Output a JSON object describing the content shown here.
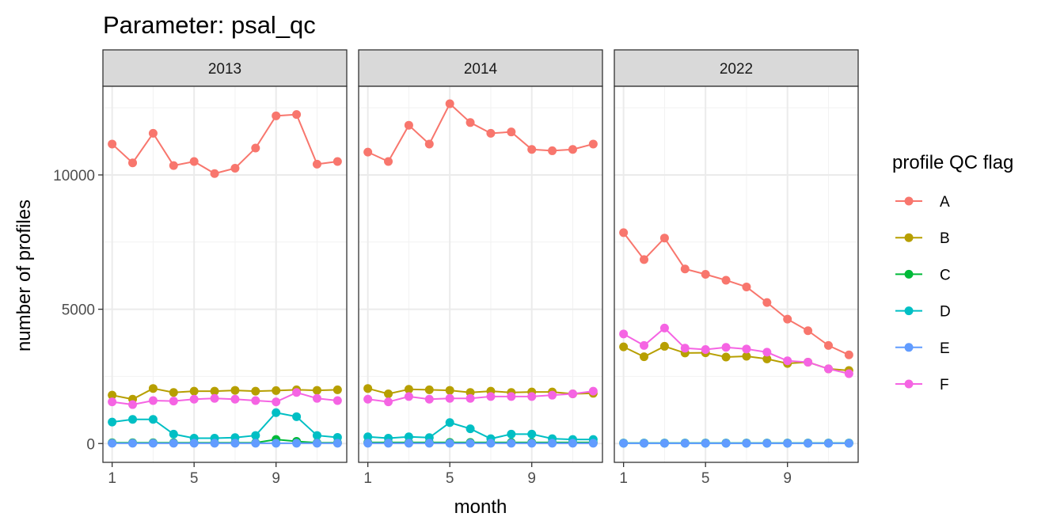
{
  "chart_data": {
    "type": "line",
    "title": "Parameter:  psal_qc",
    "xlabel": "month",
    "ylabel": "number of profiles",
    "x": [
      1,
      2,
      3,
      4,
      5,
      6,
      7,
      8,
      9,
      10,
      11,
      12
    ],
    "xticks": [
      1,
      5,
      9
    ],
    "ylim": [
      -700,
      13300
    ],
    "yticks": [
      0,
      5000,
      10000
    ],
    "grid": true,
    "legend": {
      "title": "profile QC flag",
      "position": "right"
    },
    "colors": {
      "A": "#F8766D",
      "B": "#B79F00",
      "C": "#00BA38",
      "D": "#00BFC4",
      "E": "#619CFF",
      "F": "#F564E3"
    },
    "series_names": [
      "A",
      "B",
      "C",
      "D",
      "E",
      "F"
    ],
    "panels": [
      {
        "label": "2013",
        "series": [
          {
            "name": "A",
            "values": [
              11150,
              10450,
              11550,
              10350,
              10500,
              10050,
              10250,
              11000,
              12200,
              12250,
              10400,
              10500
            ]
          },
          {
            "name": "B",
            "values": [
              1800,
              1650,
              2050,
              1900,
              1950,
              1950,
              1980,
              1950,
              1970,
              2000,
              1980,
              2000
            ]
          },
          {
            "name": "C",
            "values": [
              30,
              30,
              30,
              30,
              30,
              30,
              30,
              30,
              150,
              80,
              30,
              30
            ]
          },
          {
            "name": "D",
            "values": [
              800,
              900,
              900,
              350,
              200,
              200,
              220,
              300,
              1150,
              1000,
              300,
              230
            ]
          },
          {
            "name": "E",
            "values": [
              10,
              10,
              10,
              10,
              10,
              10,
              10,
              10,
              10,
              10,
              10,
              10
            ]
          },
          {
            "name": "F",
            "values": [
              1550,
              1450,
              1600,
              1580,
              1650,
              1680,
              1650,
              1600,
              1550,
              1900,
              1680,
              1600
            ]
          }
        ]
      },
      {
        "label": "2014",
        "series": [
          {
            "name": "A",
            "values": [
              10850,
              10500,
              11850,
              11150,
              12650,
              11950,
              11550,
              11600,
              10950,
              10900,
              10950,
              11150
            ]
          },
          {
            "name": "B",
            "values": [
              2050,
              1850,
              2020,
              2000,
              1980,
              1900,
              1950,
              1900,
              1920,
              1920,
              1850,
              1870
            ]
          },
          {
            "name": "C",
            "values": [
              40,
              40,
              40,
              40,
              40,
              40,
              40,
              40,
              40,
              40,
              40,
              40
            ]
          },
          {
            "name": "D",
            "values": [
              250,
              200,
              250,
              220,
              780,
              550,
              180,
              350,
              350,
              180,
              150,
              150
            ]
          },
          {
            "name": "E",
            "values": [
              10,
              10,
              10,
              10,
              10,
              10,
              10,
              10,
              10,
              10,
              10,
              10
            ]
          },
          {
            "name": "F",
            "values": [
              1650,
              1550,
              1750,
              1650,
              1680,
              1680,
              1750,
              1750,
              1750,
              1800,
              1850,
              1950
            ]
          }
        ]
      },
      {
        "label": "2022",
        "series": [
          {
            "name": "A",
            "values": [
              7850,
              6850,
              7650,
              6500,
              6300,
              6080,
              5830,
              5250,
              4630,
              4200,
              3650,
              3300
            ]
          },
          {
            "name": "B",
            "values": [
              3600,
              3230,
              3620,
              3370,
              3380,
              3220,
              3250,
              3150,
              2980,
              3030,
              2780,
              2720
            ]
          },
          {
            "name": "C",
            "values": [
              20,
              20,
              20,
              20,
              20,
              20,
              20,
              20,
              20,
              20,
              20,
              20
            ]
          },
          {
            "name": "D",
            "values": [
              10,
              10,
              10,
              10,
              10,
              10,
              10,
              10,
              10,
              10,
              10,
              10
            ]
          },
          {
            "name": "E",
            "values": [
              10,
              10,
              10,
              10,
              10,
              10,
              10,
              10,
              10,
              10,
              10,
              10
            ]
          },
          {
            "name": "F",
            "values": [
              4080,
              3650,
              4300,
              3550,
              3500,
              3580,
              3520,
              3400,
              3080,
              3030,
              2780,
              2600
            ]
          }
        ]
      }
    ]
  }
}
